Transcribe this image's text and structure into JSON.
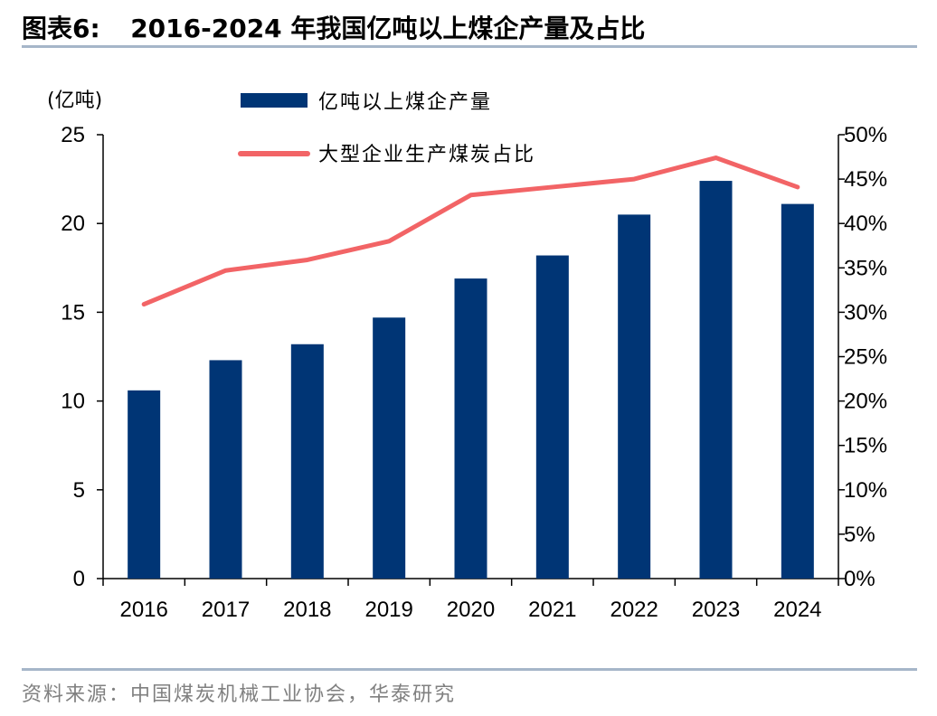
{
  "header": {
    "label": "图表6:",
    "title": "2016-2024 年我国亿吨以上煤企产量及占比"
  },
  "footer": {
    "source": "资料来源：中国煤炭机械工业协会，华泰研究"
  },
  "colors": {
    "bar": "#003575",
    "line": "#f26466",
    "rule": "#a6b6c9",
    "source_text": "#808080"
  },
  "chart_data": {
    "type": "bar",
    "categories": [
      "2016",
      "2017",
      "2018",
      "2019",
      "2020",
      "2021",
      "2022",
      "2023",
      "2024"
    ],
    "left_unit": "(亿吨)",
    "series": [
      {
        "name": "亿吨以上煤企产量",
        "type": "bar",
        "axis": "left",
        "values": [
          10.6,
          12.3,
          13.2,
          14.7,
          16.9,
          18.2,
          20.5,
          22.4,
          21.1
        ]
      },
      {
        "name": "大型企业生产煤炭占比",
        "type": "line",
        "axis": "right",
        "values": [
          30.9,
          34.7,
          35.9,
          38.0,
          43.2,
          44.1,
          45.0,
          47.4,
          44.1
        ]
      }
    ],
    "left_axis": {
      "ylim": [
        0,
        25
      ],
      "ticks": [
        "0",
        "5",
        "10",
        "15",
        "20",
        "25"
      ]
    },
    "right_axis": {
      "ylim": [
        0,
        50
      ],
      "ticks": [
        "0%",
        "5%",
        "10%",
        "15%",
        "20%",
        "25%",
        "30%",
        "35%",
        "40%",
        "45%",
        "50%"
      ]
    },
    "legend_position": "top-center",
    "grid": false
  }
}
